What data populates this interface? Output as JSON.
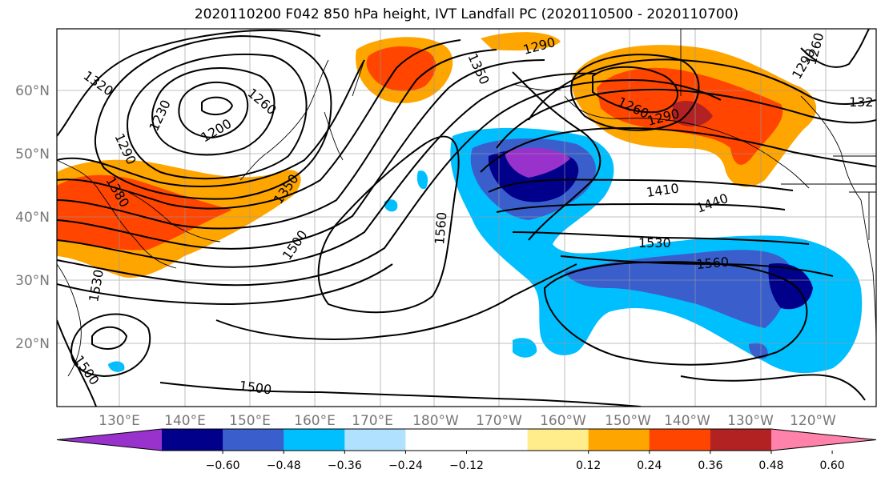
{
  "title": "2020110200 F042 850 hPa height, IVT Landfall PC (2020110500 - 2020110700)",
  "lat_labels": [
    "60°N",
    "50°N",
    "40°N",
    "30°N",
    "20°N"
  ],
  "lon_labels": [
    "130°E",
    "140°E",
    "150°E",
    "160°E",
    "170°E",
    "180°W",
    "170°W",
    "160°W",
    "150°W",
    "140°W",
    "130°W",
    "120°W"
  ],
  "colorbar": {
    "colors": [
      "#9932cc",
      "#00008b",
      "#3a5fcd",
      "#00bfff",
      "#b0e2ff",
      "#ffffff",
      "#ffffff",
      "#ffec8b",
      "#ffa500",
      "#ff4500",
      "#b22222",
      "#ff82ab"
    ],
    "tick_labels": [
      "−0.60",
      "−0.48",
      "−0.36",
      "−0.24",
      "−0.12",
      "0.12",
      "0.24",
      "0.36",
      "0.48",
      "0.60"
    ]
  },
  "contour_labels": [
    {
      "text": "1320"
    },
    {
      "text": "1230"
    },
    {
      "text": "1200"
    },
    {
      "text": "1260"
    },
    {
      "text": "1290"
    },
    {
      "text": "1380"
    },
    {
      "text": "1350"
    },
    {
      "text": "1500"
    },
    {
      "text": "1530"
    },
    {
      "text": "1500"
    },
    {
      "text": "1500"
    },
    {
      "text": "1560"
    },
    {
      "text": "1350"
    },
    {
      "text": "1290"
    },
    {
      "text": "1260"
    },
    {
      "text": "1290"
    },
    {
      "text": "1260"
    },
    {
      "text": "1290"
    },
    {
      "text": "132"
    },
    {
      "text": "1410"
    },
    {
      "text": "1440"
    },
    {
      "text": "1530"
    },
    {
      "text": "1560"
    }
  ]
}
